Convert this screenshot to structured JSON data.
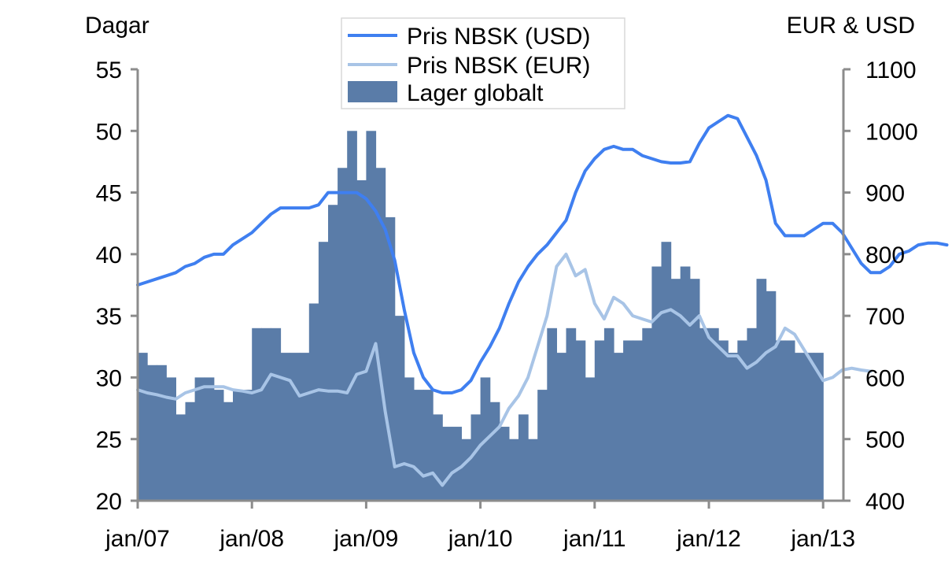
{
  "chart_data": {
    "type": "bar+line",
    "left_axis": {
      "unit_label": "Dagar",
      "min": 20,
      "max": 55,
      "ticks": [
        "20",
        "25",
        "30",
        "35",
        "40",
        "45",
        "50",
        "55"
      ]
    },
    "right_axis": {
      "unit_label": "EUR & USD",
      "min": 400,
      "max": 1100,
      "ticks": [
        "400",
        "500",
        "600",
        "700",
        "800",
        "900",
        "1000",
        "1100"
      ]
    },
    "x_ticks": [
      "jan/07",
      "jan/08",
      "jan/09",
      "jan/10",
      "jan/11",
      "jan/12",
      "jan/13"
    ],
    "start_year": 2007,
    "legend": {
      "placement": "top-center",
      "entries": [
        "Pris NBSK (USD)",
        "Pris NBSK (EUR)",
        "Lager globalt"
      ]
    },
    "colors": {
      "usd": "#3F7FF0",
      "eur": "#A8C4E6",
      "bars": "#5A7CA8",
      "axis": "#8C8C8C",
      "legend_border": "#D9D9D9"
    },
    "series": [
      {
        "name": "Lager globalt",
        "axis": "left",
        "kind": "bar",
        "values": [
          32,
          31,
          31,
          30,
          27,
          28,
          30,
          30,
          29,
          28,
          29,
          29,
          34,
          34,
          34,
          32,
          32,
          32,
          36,
          41,
          44,
          47,
          50,
          46,
          50,
          47,
          43,
          35,
          30,
          29,
          29,
          27,
          26,
          26,
          25,
          27,
          30,
          28,
          26,
          25,
          27,
          25,
          29,
          34,
          32,
          34,
          33,
          30,
          33,
          34,
          32,
          33,
          33,
          34,
          39,
          41,
          38,
          39,
          38,
          34,
          34,
          33,
          32,
          33,
          34,
          38,
          37,
          33,
          33,
          32,
          32,
          32
        ]
      },
      {
        "name": "Pris NBSK (USD)",
        "axis": "right",
        "kind": "line",
        "values": [
          750,
          755,
          760,
          765,
          770,
          780,
          785,
          795,
          800,
          800,
          815,
          825,
          835,
          850,
          865,
          875,
          875,
          875,
          875,
          880,
          900,
          900,
          900,
          900,
          890,
          870,
          840,
          790,
          710,
          640,
          600,
          580,
          575,
          575,
          580,
          595,
          625,
          650,
          680,
          720,
          755,
          780,
          800,
          815,
          835,
          855,
          900,
          935,
          955,
          970,
          975,
          970,
          970,
          960,
          955,
          950,
          948,
          948,
          950,
          980,
          1005,
          1015,
          1025,
          1020,
          990,
          960,
          920,
          850,
          830,
          830,
          830,
          840,
          850,
          850,
          835,
          810,
          785,
          770,
          770,
          780,
          800,
          805,
          815,
          818,
          818,
          815
        ]
      },
      {
        "name": "Pris NBSK (EUR)",
        "axis": "right",
        "kind": "line",
        "values": [
          580,
          575,
          572,
          568,
          565,
          575,
          580,
          585,
          585,
          585,
          580,
          578,
          575,
          580,
          605,
          600,
          595,
          570,
          575,
          580,
          578,
          578,
          575,
          605,
          610,
          655,
          545,
          455,
          460,
          455,
          440,
          445,
          425,
          445,
          455,
          470,
          490,
          505,
          520,
          550,
          570,
          600,
          650,
          700,
          780,
          800,
          765,
          775,
          720,
          695,
          730,
          720,
          700,
          695,
          690,
          705,
          710,
          700,
          685,
          700,
          665,
          650,
          635,
          635,
          615,
          625,
          640,
          650,
          680,
          670,
          645,
          620,
          595,
          600,
          612,
          615,
          612,
          610
        ]
      }
    ]
  }
}
